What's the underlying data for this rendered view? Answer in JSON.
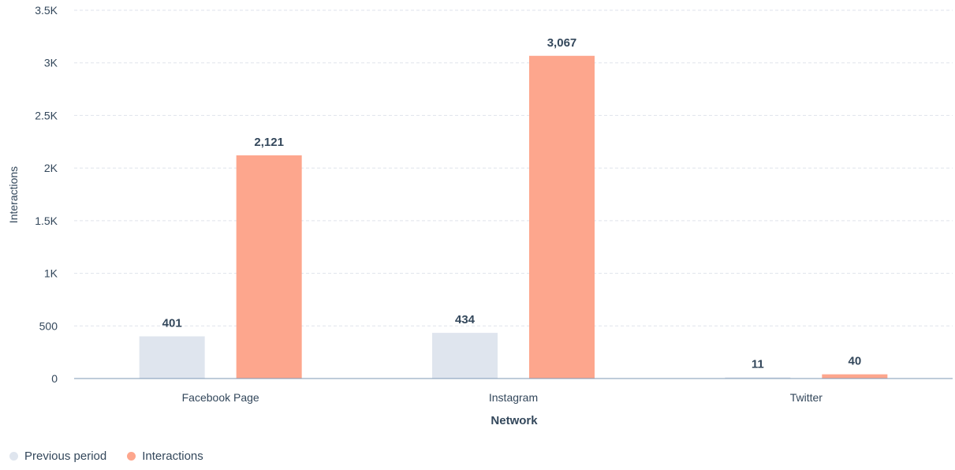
{
  "chart_data": {
    "type": "bar",
    "categories": [
      "Facebook Page",
      "Instagram",
      "Twitter"
    ],
    "series": [
      {
        "name": "Previous period",
        "values": [
          401,
          434,
          11
        ],
        "color": "#dfe5ee",
        "labels": [
          "401",
          "434",
          "11"
        ]
      },
      {
        "name": "Interactions",
        "values": [
          2121,
          3067,
          40
        ],
        "color": "#fda68d",
        "labels": [
          "2,121",
          "3,067",
          "40"
        ]
      }
    ],
    "xlabel": "Network",
    "ylabel": "Interactions",
    "ylim": [
      0,
      3500
    ],
    "yticks": [
      0,
      500,
      1000,
      1500,
      2000,
      2500,
      3000,
      3500
    ],
    "ytick_labels": [
      "0",
      "500",
      "1K",
      "1.5K",
      "2K",
      "2.5K",
      "3K",
      "3.5K"
    ],
    "grid": true,
    "legend_position": "bottom-left"
  }
}
